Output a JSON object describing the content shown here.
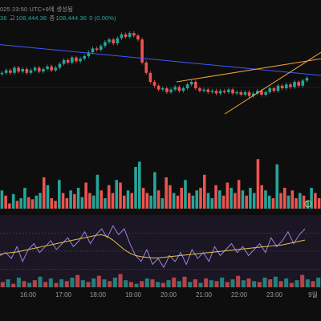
{
  "header": {
    "datetime": "025 23:50 UTC+9에 생성됨",
    "open_tail": "36",
    "high_label": "고",
    "high_value": "108,444.36",
    "low_label": "종",
    "low_value": "108,444.36",
    "change": "0 (0.00%)"
  },
  "colors": {
    "background": "#0e0e0e",
    "up": "#26a69a",
    "down": "#ef5350",
    "trend_blue": "#3d5afe",
    "channel_orange": "#f7a23b",
    "rsi_purple": "#9c7fe0",
    "rsi_yellow": "#e6c34a"
  },
  "chart_data": [
    {
      "type": "candlestick",
      "panel": "price",
      "trend_lines": [
        {
          "name": "",
          "color": "blue",
          "points": [
            [
              0,
              0.84
            ],
            [
              1,
              0.6
            ]
          ]
        },
        {
          "name": "",
          "color": "orange",
          "points": [
            [
              0.55,
              0.55
            ],
            [
              1,
              0.73
            ]
          ]
        },
        {
          "name": "",
          "color": "orange",
          "points": [
            [
              0.7,
              0.3
            ],
            [
              1,
              0.78
            ]
          ]
        }
      ],
      "closes": [
        0.62,
        0.64,
        0.62,
        0.66,
        0.63,
        0.65,
        0.62,
        0.64,
        0.66,
        0.63,
        0.65,
        0.67,
        0.64,
        0.66,
        0.69,
        0.72,
        0.7,
        0.74,
        0.71,
        0.73,
        0.75,
        0.78,
        0.81,
        0.8,
        0.83,
        0.86,
        0.88,
        0.85,
        0.89,
        0.92,
        0.9,
        0.93,
        0.91,
        0.88,
        0.7,
        0.62,
        0.55,
        0.52,
        0.49,
        0.5,
        0.47,
        0.49,
        0.51,
        0.48,
        0.5,
        0.53,
        0.55,
        0.5,
        0.48,
        0.49,
        0.47,
        0.48,
        0.46,
        0.48,
        0.47,
        0.49,
        0.46,
        0.47,
        0.45,
        0.47,
        0.44,
        0.46,
        0.48,
        0.45,
        0.47,
        0.5,
        0.48,
        0.52,
        0.5,
        0.53,
        0.51,
        0.55,
        0.52,
        0.56,
        0.58
      ]
    },
    {
      "type": "bar",
      "panel": "volume",
      "values": [
        0.35,
        0.25,
        0.1,
        0.28,
        0.15,
        0.2,
        0.4,
        0.22,
        0.18,
        0.25,
        0.3,
        0.6,
        0.45,
        0.2,
        0.15,
        0.55,
        0.3,
        0.2,
        0.35,
        0.28,
        0.4,
        0.22,
        0.5,
        0.3,
        0.25,
        0.65,
        0.35,
        0.2,
        0.45,
        0.3,
        0.55,
        0.5,
        0.25,
        0.35,
        0.3,
        0.8,
        0.9,
        0.4,
        0.3,
        0.25,
        0.7,
        0.35,
        0.2,
        0.6,
        0.45,
        0.3,
        0.25,
        0.4,
        0.55,
        0.3,
        0.25,
        0.35,
        0.4,
        0.65,
        0.3,
        0.2,
        0.45,
        0.35,
        0.25,
        0.5,
        0.4,
        0.3,
        0.55,
        0.35,
        0.25,
        0.4,
        0.3,
        0.95,
        0.45,
        0.35,
        0.25,
        0.2,
        0.85,
        0.3,
        0.4,
        0.25,
        0.35,
        0.2,
        0.3,
        0.25,
        0.15,
        0.4,
        0.3,
        0.2
      ]
    },
    {
      "type": "line",
      "panel": "oscillator",
      "series": [
        {
          "name": "",
          "color": "purple",
          "values": [
            0.4,
            0.45,
            0.35,
            0.55,
            0.3,
            0.5,
            0.6,
            0.45,
            0.55,
            0.65,
            0.5,
            0.6,
            0.7,
            0.55,
            0.65,
            0.8,
            0.6,
            0.75,
            0.85,
            0.7,
            0.9,
            0.75,
            0.85,
            0.6,
            0.4,
            0.3,
            0.5,
            0.25,
            0.35,
            0.2,
            0.4,
            0.3,
            0.45,
            0.25,
            0.5,
            0.35,
            0.45,
            0.3,
            0.55,
            0.4,
            0.5,
            0.6,
            0.45,
            0.55,
            0.4,
            0.5,
            0.6,
            0.45,
            0.7,
            0.55,
            0.65,
            0.8,
            0.6,
            0.75,
            0.85
          ]
        },
        {
          "name": "",
          "color": "yellow",
          "values": [
            0.42,
            0.44,
            0.45,
            0.46,
            0.48,
            0.5,
            0.52,
            0.54,
            0.56,
            0.58,
            0.6,
            0.62,
            0.64,
            0.66,
            0.68,
            0.7,
            0.72,
            0.74,
            0.75,
            0.72,
            0.66,
            0.58,
            0.5,
            0.44,
            0.4,
            0.38,
            0.37,
            0.36,
            0.36,
            0.37,
            0.38,
            0.39,
            0.4,
            0.41,
            0.42,
            0.43,
            0.44,
            0.45,
            0.46,
            0.47,
            0.48,
            0.49,
            0.5,
            0.51,
            0.52,
            0.53,
            0.54,
            0.55,
            0.56,
            0.57,
            0.58,
            0.6,
            0.62,
            0.64,
            0.66
          ]
        }
      ],
      "bars": [
        0.3,
        0.45,
        0.2,
        0.55,
        0.35,
        0.25,
        0.4,
        0.6,
        0.3,
        0.5,
        0.25,
        0.45,
        0.35,
        0.55,
        0.7,
        0.4,
        0.3,
        0.5,
        0.65,
        0.45,
        0.35,
        0.55,
        0.75,
        0.4,
        0.3,
        0.2,
        0.35,
        0.5,
        0.45,
        0.3,
        0.25,
        0.4,
        0.55,
        0.35,
        0.6,
        0.3,
        0.45,
        0.25,
        0.5,
        0.4,
        0.35,
        0.55,
        0.3,
        0.45,
        0.65,
        0.4,
        0.5,
        0.35,
        0.3,
        0.55,
        0.45,
        0.6,
        0.35,
        0.5,
        0.25,
        0.4,
        0.7,
        0.45,
        0.35,
        0.55
      ]
    }
  ],
  "x_axis": {
    "ticks": [
      "16:00",
      "17:00",
      "18:00",
      "19:00",
      "20:00",
      "21:00",
      "22:00",
      "23:00",
      "9월"
    ]
  }
}
